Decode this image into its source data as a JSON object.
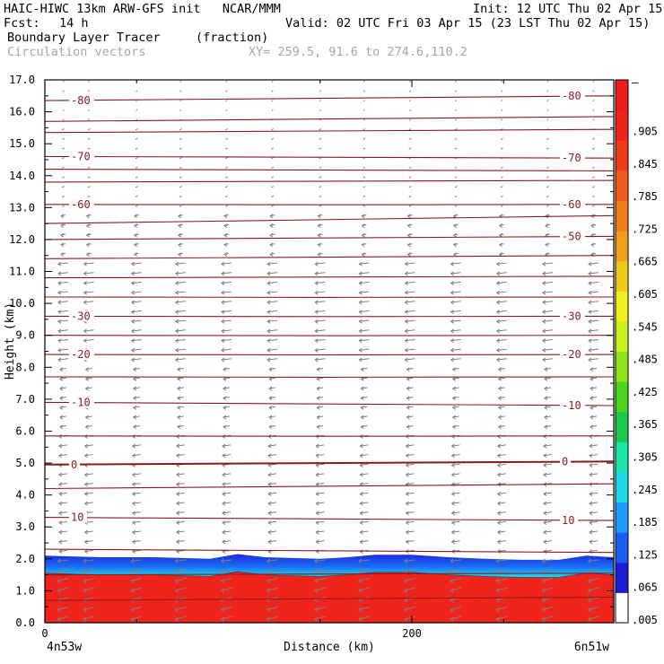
{
  "header": {
    "model_line": "HAIC-HIWC 13km ARW-GFS init   NCAR/MMM",
    "init": "Init: 12 UTC Thu 02 Apr 15",
    "fcst_label": "Fcst:",
    "fcst_value": "14 h",
    "valid": "Valid: 02 UTC Fri 03 Apr 15 (23 LST Thu 02 Apr 15)",
    "field_name": "Boundary Layer Tracer",
    "field_unit": "(fraction)",
    "overlay_name": "Circulation vectors",
    "xy_range": "XY= 259.5, 91.6 to 274.6,110.2"
  },
  "chart_data": {
    "type": "heatmap",
    "xlabel": "Distance (km)",
    "ylabel": "Height (km)",
    "xlim": [
      0,
      310
    ],
    "ylim": [
      0,
      17
    ],
    "x_ticks": [
      {
        "v": 0,
        "label": "0"
      },
      {
        "v": 200,
        "label": "200"
      }
    ],
    "y_ticks": [
      {
        "v": 0,
        "label": "0.0"
      },
      {
        "v": 1,
        "label": "1.0"
      },
      {
        "v": 2,
        "label": "2.0"
      },
      {
        "v": 3,
        "label": "3.0"
      },
      {
        "v": 4,
        "label": "4.0"
      },
      {
        "v": 5,
        "label": "5.0"
      },
      {
        "v": 6,
        "label": "6.0"
      },
      {
        "v": 7,
        "label": "7.0"
      },
      {
        "v": 8,
        "label": "8.0"
      },
      {
        "v": 9,
        "label": "9.0"
      },
      {
        "v": 10,
        "label": "10.0"
      },
      {
        "v": 11,
        "label": "11.0"
      },
      {
        "v": 12,
        "label": "12.0"
      },
      {
        "v": 13,
        "label": "13.0"
      },
      {
        "v": 14,
        "label": "14.0"
      },
      {
        "v": 15,
        "label": "15.0"
      },
      {
        "v": 16,
        "label": "16.0"
      },
      {
        "v": 17,
        "label": "17.0"
      }
    ],
    "endpoints": {
      "left": "4n53w",
      "right": "6n51w"
    },
    "boundary_layer_top_km": [
      [
        0,
        1.55
      ],
      [
        30,
        1.5
      ],
      [
        60,
        1.5
      ],
      [
        90,
        1.45
      ],
      [
        105,
        1.6
      ],
      [
        120,
        1.5
      ],
      [
        150,
        1.45
      ],
      [
        165,
        1.5
      ],
      [
        180,
        1.58
      ],
      [
        200,
        1.58
      ],
      [
        220,
        1.5
      ],
      [
        240,
        1.45
      ],
      [
        260,
        1.42
      ],
      [
        280,
        1.42
      ],
      [
        295,
        1.55
      ],
      [
        310,
        1.5
      ]
    ],
    "temperature_contours": [
      {
        "label": "-80",
        "h_left": 16.35,
        "h_right": 16.5,
        "label_left": true,
        "label_right": true
      },
      {
        "label": "",
        "h_left": 15.7,
        "h_right": 15.85
      },
      {
        "label": "",
        "h_left": 15.35,
        "h_right": 15.45
      },
      {
        "label": "-70",
        "h_left": 14.6,
        "h_right": 14.55,
        "label_left": true,
        "label_right": true
      },
      {
        "label": "",
        "h_left": 14.2,
        "h_right": 14.15
      },
      {
        "label": "",
        "h_left": 13.8,
        "h_right": 13.85
      },
      {
        "label": "-60",
        "h_left": 13.1,
        "h_right": 13.1,
        "label_left": true,
        "label_right": true
      },
      {
        "label": "",
        "h_left": 12.5,
        "h_right": 12.75
      },
      {
        "label": "-50",
        "h_left": 12.0,
        "h_right": 12.1,
        "label_left": false,
        "label_right": true
      },
      {
        "label": "",
        "h_left": 11.4,
        "h_right": 11.5
      },
      {
        "label": "",
        "h_left": 10.8,
        "h_right": 10.85
      },
      {
        "label": "",
        "h_left": 10.2,
        "h_right": 10.2
      },
      {
        "label": "-30",
        "h_left": 9.6,
        "h_right": 9.6,
        "label_left": true,
        "label_right": true
      },
      {
        "label": "",
        "h_left": 9.0,
        "h_right": 9.0
      },
      {
        "label": "-20",
        "h_left": 8.4,
        "h_right": 8.4,
        "label_left": true,
        "label_right": true
      },
      {
        "label": "",
        "h_left": 7.7,
        "h_right": 7.7
      },
      {
        "label": "-10",
        "h_left": 6.9,
        "h_right": 6.8,
        "label_left": true,
        "label_right": true
      },
      {
        "label": "",
        "h_left": 5.85,
        "h_right": 5.85
      },
      {
        "label": "0",
        "h_left": 4.95,
        "h_right": 5.05,
        "label_left": true,
        "label_right": true,
        "bold": true
      },
      {
        "label": "",
        "h_left": 4.2,
        "h_right": 4.35
      },
      {
        "label": "10",
        "h_left": 3.3,
        "h_right": 3.2,
        "label_left": true,
        "label_right": true
      },
      {
        "label": "",
        "h_left": 2.3,
        "h_right": 2.2
      },
      {
        "label": "",
        "h_left": 1.5,
        "h_right": 1.55
      },
      {
        "label": "",
        "h_left": 0.7,
        "h_right": 0.8
      }
    ],
    "vector_columns_km": [
      10,
      24,
      50,
      74,
      99,
      124,
      150,
      174,
      199,
      224,
      249,
      274,
      299
    ],
    "colorbar": {
      "range": [
        0,
        1
      ],
      "tick_labels": [
        {
          "v": 0.995,
          "label": "–"
        },
        {
          "v": 0.905,
          "label": ".905"
        },
        {
          "v": 0.845,
          "label": ".845"
        },
        {
          "v": 0.785,
          "label": ".785"
        },
        {
          "v": 0.725,
          "label": ".725"
        },
        {
          "v": 0.665,
          "label": ".665"
        },
        {
          "v": 0.605,
          "label": ".605"
        },
        {
          "v": 0.545,
          "label": ".545"
        },
        {
          "v": 0.485,
          "label": ".485"
        },
        {
          "v": 0.425,
          "label": ".425"
        },
        {
          "v": 0.365,
          "label": ".365"
        },
        {
          "v": 0.305,
          "label": ".305"
        },
        {
          "v": 0.245,
          "label": ".245"
        },
        {
          "v": 0.185,
          "label": ".185"
        },
        {
          "v": 0.125,
          "label": ".125"
        },
        {
          "v": 0.065,
          "label": ".065"
        },
        {
          "v": 0.005,
          "label": ".005"
        }
      ],
      "colors": [
        "#ffffff",
        "#1c1cd6",
        "#1a5cf0",
        "#1a9cff",
        "#1ad6e6",
        "#1ae6a6",
        "#1ac84a",
        "#4ad61a",
        "#8ee61a",
        "#c8f01a",
        "#f0f01a",
        "#f0c81a",
        "#f0a01a",
        "#f07a1a",
        "#f05a1a",
        "#f03a1a",
        "#f0221a",
        "#ee1c1c"
      ]
    },
    "colors": {
      "contour": "#8b1a1a",
      "vector": "#7f7f7f",
      "header_gray": "#a6a6a6"
    }
  }
}
